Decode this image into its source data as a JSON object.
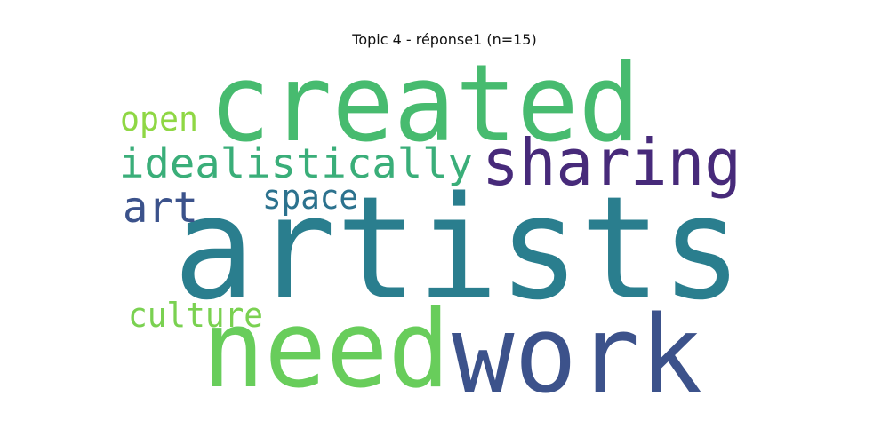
{
  "figure": {
    "title": "Topic 4 - réponse1 (n=15)"
  },
  "word_cloud": {
    "words": [
      {
        "text": "artists",
        "color": "#2a7e8e"
      },
      {
        "text": "created",
        "color": "#47bb6f"
      },
      {
        "text": "need",
        "color": "#68cd5b"
      },
      {
        "text": "work",
        "color": "#3c528b"
      },
      {
        "text": "sharing",
        "color": "#472a7a"
      },
      {
        "text": "idealistically",
        "color": "#3aae79"
      },
      {
        "text": "open",
        "color": "#8fd744"
      },
      {
        "text": "art",
        "color": "#3b528b"
      },
      {
        "text": "space",
        "color": "#2c728e"
      },
      {
        "text": "culture",
        "color": "#7ad151"
      }
    ]
  }
}
